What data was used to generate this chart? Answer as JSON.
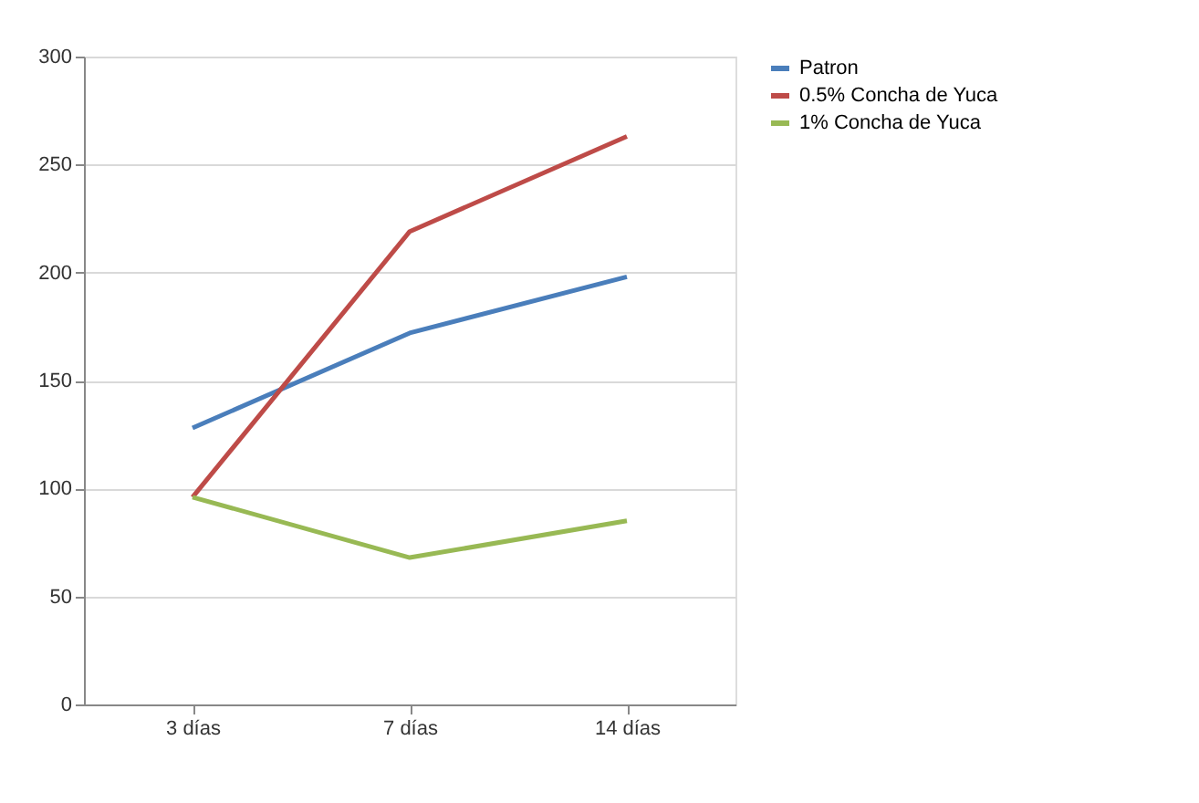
{
  "chart_data": {
    "type": "line",
    "categories": [
      "3 días",
      "7 días",
      "14 días"
    ],
    "series": [
      {
        "name": "Patron",
        "color": "#4a7ebb",
        "values": [
          128,
          172,
          198
        ]
      },
      {
        "name": "0.5% Concha de Yuca",
        "color": "#be4b48",
        "values": [
          96,
          219,
          263
        ]
      },
      {
        "name": "1% Concha de Yuca",
        "color": "#98b954",
        "values": [
          96,
          68,
          85
        ]
      }
    ],
    "ylim": [
      0,
      300
    ],
    "yticks": [
      0,
      50,
      100,
      150,
      200,
      250,
      300
    ],
    "grid": "y",
    "legend": "right",
    "marker": "none",
    "line_style": "solid"
  }
}
